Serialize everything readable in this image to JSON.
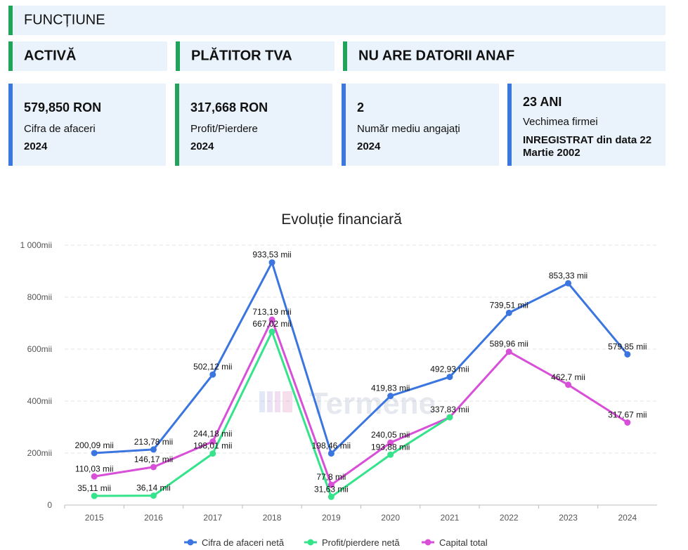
{
  "status": {
    "functiune": "FUNCȚIUNE",
    "activa": "ACTIVĂ",
    "tva": "PLĂTITOR TVA",
    "datorii": "NU ARE DATORII ANAF"
  },
  "metrics": [
    {
      "value": "579,850 RON",
      "label": "Cifra de afaceri",
      "year": "2024"
    },
    {
      "value": "317,668 RON",
      "label": "Profit/Pierdere",
      "year": "2024"
    },
    {
      "value": "2",
      "label": "Număr mediu angajați",
      "year": "2024"
    }
  ],
  "vechime": {
    "value": "23 ANI",
    "label": "Vechimea firmei",
    "registered": "INREGISTRAT din data 22 Martie 2002"
  },
  "watermark": "Termene",
  "colors": {
    "blue": "#3a78e0",
    "green": "#1fa45a",
    "light_blue": "#eaf3fb"
  },
  "chart_data": {
    "type": "line",
    "title": "Evoluție financiară",
    "categories": [
      "2015",
      "2016",
      "2017",
      "2018",
      "2019",
      "2020",
      "2021",
      "2022",
      "2023",
      "2024"
    ],
    "y_ticks": [
      "0",
      "200mii",
      "400mii",
      "600mii",
      "800mii",
      "1 000mii"
    ],
    "ylim": [
      0,
      1000
    ],
    "grid": true,
    "legend_position": "bottom",
    "series": [
      {
        "name": "Cifra de afaceri netă",
        "color": "#3b75df",
        "values": [
          200.09,
          213.78,
          502.12,
          933.53,
          198.46,
          419.83,
          492.93,
          739.51,
          853.33,
          579.85
        ],
        "labels": [
          "200,09 mii",
          "213,78 mii",
          "502,12 mii",
          "933,53 mii",
          "198,46 mii",
          "419,83 mii",
          "492,93 mii",
          "739,51 mii",
          "853,33 mii",
          "579,85 mii"
        ]
      },
      {
        "name": "Profit/pierdere netă",
        "color": "#34e38a",
        "values": [
          35.11,
          36.14,
          198.01,
          667.02,
          31.63,
          193.88,
          337.83,
          null,
          null,
          null
        ],
        "labels": [
          "35,11 mii",
          "36,14 mii",
          "198,01 mii",
          "667,02 mii",
          "31,63 mii",
          "193,88 mii",
          "",
          "",
          "",
          ""
        ]
      },
      {
        "name": "Capital total",
        "color": "#d84fd8",
        "values": [
          110.03,
          146.17,
          244.18,
          713.19,
          77.8,
          240.05,
          337.83,
          589.96,
          462.7,
          317.67
        ],
        "labels": [
          "110,03 mii",
          "146,17 mii",
          "244,18 mii",
          "713,19 mii",
          "77,8 mii",
          "240,05 mii",
          "337,83 mii",
          "589,96 mii",
          "462,7 mii",
          "317,67 mii"
        ]
      }
    ]
  }
}
